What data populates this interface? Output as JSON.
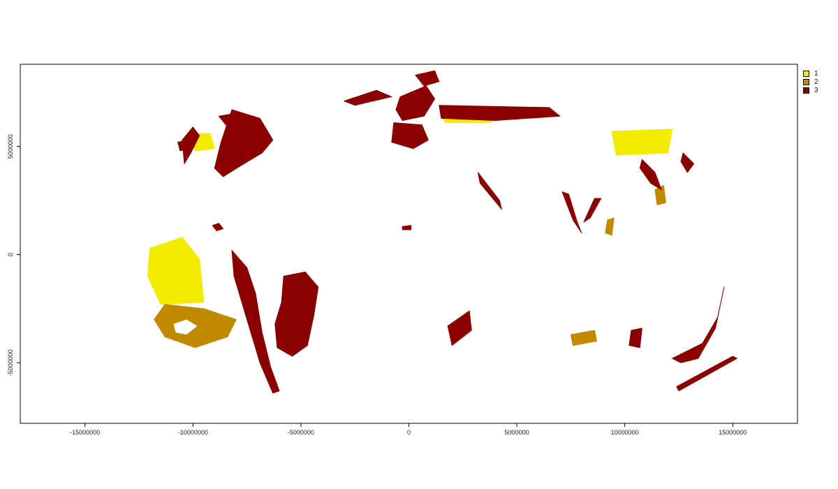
{
  "chart_data": {
    "type": "heatmap",
    "title": "",
    "xlabel": "",
    "ylabel": "",
    "xlim": [
      -18000000,
      18000000
    ],
    "ylim": [
      -7800000,
      8800000
    ],
    "x_ticks": [
      -15000000,
      -10000000,
      -5000000,
      0,
      5000000,
      10000000,
      15000000
    ],
    "x_tick_labels": [
      "-15000000",
      "-10000000",
      "-5000000",
      "0",
      "5000000",
      "10000000",
      "15000000"
    ],
    "y_ticks": [
      -5000000,
      0,
      5000000
    ],
    "y_tick_labels": [
      "-5000000",
      "0",
      "5000000"
    ],
    "legend_position": "right-top",
    "legend": [
      {
        "label": "1",
        "color": "#f2ec00"
      },
      {
        "label": "2",
        "color": "#c08a00"
      },
      {
        "label": "3",
        "color": "#8b0000"
      }
    ]
  },
  "regions": [
    {
      "name": "north-america-east",
      "cls": 3,
      "points": [
        [
          -8200000,
          6700000
        ],
        [
          -6900000,
          6300000
        ],
        [
          -6300000,
          5300000
        ],
        [
          -6800000,
          4700000
        ],
        [
          -7800000,
          4100000
        ],
        [
          -8600000,
          3600000
        ],
        [
          -9000000,
          4000000
        ],
        [
          -8700000,
          5200000
        ]
      ]
    },
    {
      "name": "north-america-canada-north",
      "cls": 3,
      "points": [
        [
          -8800000,
          6400000
        ],
        [
          -8200000,
          6500000
        ],
        [
          -7800000,
          6000000
        ],
        [
          -8400000,
          5900000
        ]
      ]
    },
    {
      "name": "north-america-west",
      "cls": 3,
      "points": [
        [
          -10500000,
          5300000
        ],
        [
          -10000000,
          5900000
        ],
        [
          -9700000,
          5500000
        ],
        [
          -10100000,
          4700000
        ],
        [
          -10400000,
          4200000
        ]
      ]
    },
    {
      "name": "alaska",
      "cls": 3,
      "points": [
        [
          -10700000,
          5200000
        ],
        [
          -10200000,
          5300000
        ],
        [
          -10100000,
          4900000
        ],
        [
          -10600000,
          4800000
        ]
      ]
    },
    {
      "name": "cuba-caribbean",
      "cls": 3,
      "points": [
        [
          -9100000,
          1350000
        ],
        [
          -8800000,
          1450000
        ],
        [
          -8600000,
          1200000
        ],
        [
          -8900000,
          1100000
        ]
      ]
    },
    {
      "name": "south-america-andes",
      "cls": 3,
      "points": [
        [
          -8200000,
          200000
        ],
        [
          -7500000,
          -600000
        ],
        [
          -7100000,
          -1800000
        ],
        [
          -6800000,
          -3600000
        ],
        [
          -6400000,
          -5200000
        ],
        [
          -6000000,
          -6300000
        ],
        [
          -6300000,
          -6400000
        ],
        [
          -6900000,
          -5000000
        ],
        [
          -7500000,
          -3000000
        ],
        [
          -8100000,
          -1000000
        ]
      ]
    },
    {
      "name": "south-america-brazil",
      "cls": 3,
      "points": [
        [
          -5800000,
          -1000000
        ],
        [
          -4800000,
          -800000
        ],
        [
          -4200000,
          -1500000
        ],
        [
          -4400000,
          -2800000
        ],
        [
          -4700000,
          -4200000
        ],
        [
          -5400000,
          -4700000
        ],
        [
          -6100000,
          -4300000
        ],
        [
          -6200000,
          -3200000
        ],
        [
          -5900000,
          -2200000
        ]
      ]
    },
    {
      "name": "europe-scandinavia",
      "cls": 3,
      "points": [
        [
          -400000,
          7300000
        ],
        [
          800000,
          7800000
        ],
        [
          1200000,
          7200000
        ],
        [
          700000,
          6400000
        ],
        [
          -300000,
          6200000
        ],
        [
          -600000,
          6700000
        ]
      ]
    },
    {
      "name": "europe-north-arctic",
      "cls": 3,
      "points": [
        [
          300000,
          8300000
        ],
        [
          1200000,
          8500000
        ],
        [
          1400000,
          8000000
        ],
        [
          700000,
          7800000
        ]
      ]
    },
    {
      "name": "europe-central",
      "cls": 3,
      "points": [
        [
          -700000,
          6100000
        ],
        [
          600000,
          6000000
        ],
        [
          900000,
          5300000
        ],
        [
          200000,
          4900000
        ],
        [
          -800000,
          5200000
        ]
      ]
    },
    {
      "name": "siberia-band",
      "cls": 3,
      "points": [
        [
          1400000,
          6900000
        ],
        [
          6500000,
          6800000
        ],
        [
          7000000,
          6400000
        ],
        [
          4000000,
          6200000
        ],
        [
          1500000,
          6300000
        ]
      ]
    },
    {
      "name": "arctic-coast",
      "cls": 3,
      "points": [
        [
          -3000000,
          7100000
        ],
        [
          -1500000,
          7600000
        ],
        [
          -800000,
          7300000
        ],
        [
          -2500000,
          6900000
        ]
      ]
    },
    {
      "name": "central-asia-ridge",
      "cls": 3,
      "points": [
        [
          3200000,
          3800000
        ],
        [
          4200000,
          2500000
        ],
        [
          4300000,
          2100000
        ],
        [
          3300000,
          3300000
        ]
      ]
    },
    {
      "name": "india-west-ghats",
      "cls": 3,
      "points": [
        [
          7100000,
          2900000
        ],
        [
          7600000,
          1600000
        ],
        [
          8000000,
          1000000
        ],
        [
          7800000,
          1500000
        ],
        [
          7400000,
          2800000
        ]
      ]
    },
    {
      "name": "india-east-coast",
      "cls": 3,
      "points": [
        [
          8100000,
          1500000
        ],
        [
          8600000,
          2600000
        ],
        [
          8900000,
          2600000
        ],
        [
          8400000,
          1700000
        ]
      ]
    },
    {
      "name": "east-china",
      "cls": 3,
      "points": [
        [
          10800000,
          4400000
        ],
        [
          11400000,
          3800000
        ],
        [
          11700000,
          3000000
        ],
        [
          11200000,
          3300000
        ],
        [
          10700000,
          4000000
        ]
      ]
    },
    {
      "name": "japan",
      "cls": 3,
      "points": [
        [
          12700000,
          4700000
        ],
        [
          13200000,
          4200000
        ],
        [
          12900000,
          3800000
        ],
        [
          12600000,
          4300000
        ]
      ]
    },
    {
      "name": "africa-south",
      "cls": 3,
      "points": [
        [
          1800000,
          -3300000
        ],
        [
          2800000,
          -2600000
        ],
        [
          2900000,
          -3500000
        ],
        [
          2000000,
          -4200000
        ]
      ]
    },
    {
      "name": "madagascar",
      "cls": 3,
      "points": [
        [
          10300000,
          -3500000
        ],
        [
          10800000,
          -3400000
        ],
        [
          10700000,
          -4300000
        ],
        [
          10200000,
          -4200000
        ]
      ]
    },
    {
      "name": "australia-south-east",
      "cls": 3,
      "points": [
        [
          12200000,
          -4800000
        ],
        [
          13600000,
          -4100000
        ],
        [
          14300000,
          -2900000
        ],
        [
          14600000,
          -1500000
        ],
        [
          14200000,
          -3400000
        ],
        [
          13400000,
          -4800000
        ],
        [
          12600000,
          -5000000
        ]
      ]
    },
    {
      "name": "new-zealand",
      "cls": 3,
      "points": [
        [
          12400000,
          -6100000
        ],
        [
          15000000,
          -4700000
        ],
        [
          15200000,
          -4800000
        ],
        [
          12500000,
          -6300000
        ]
      ]
    },
    {
      "name": "west-africa-blob",
      "cls": 3,
      "points": [
        [
          -300000,
          1300000
        ],
        [
          100000,
          1350000
        ],
        [
          100000,
          1150000
        ],
        [
          -300000,
          1150000
        ]
      ]
    },
    {
      "name": "pacific-ring-class2",
      "cls": 2,
      "points": [
        [
          -11300000,
          -2300000
        ],
        [
          -9500000,
          -2500000
        ],
        [
          -8000000,
          -3000000
        ],
        [
          -8400000,
          -3800000
        ],
        [
          -9900000,
          -4300000
        ],
        [
          -11300000,
          -3800000
        ],
        [
          -11800000,
          -3000000
        ]
      ]
    },
    {
      "name": "pacific-scatter-class1",
      "cls": 1,
      "points": [
        [
          -12000000,
          300000
        ],
        [
          -10500000,
          800000
        ],
        [
          -9700000,
          -200000
        ],
        [
          -9500000,
          -2200000
        ],
        [
          -11500000,
          -2300000
        ],
        [
          -12100000,
          -1000000
        ]
      ]
    },
    {
      "name": "indian-ocean-class2",
      "cls": 2,
      "points": [
        [
          7500000,
          -3700000
        ],
        [
          8600000,
          -3500000
        ],
        [
          8700000,
          -4000000
        ],
        [
          7600000,
          -4200000
        ]
      ]
    },
    {
      "name": "siberia-class1",
      "cls": 1,
      "points": [
        [
          1500000,
          6400000
        ],
        [
          4000000,
          6600000
        ],
        [
          3800000,
          6100000
        ],
        [
          1700000,
          6100000
        ]
      ]
    },
    {
      "name": "east-asia-class1",
      "cls": 1,
      "points": [
        [
          9400000,
          5700000
        ],
        [
          12200000,
          5800000
        ],
        [
          12000000,
          4700000
        ],
        [
          9600000,
          4600000
        ]
      ]
    },
    {
      "name": "north-america-class1",
      "cls": 1,
      "points": [
        [
          -10200000,
          5600000
        ],
        [
          -9200000,
          5600000
        ],
        [
          -9000000,
          4900000
        ],
        [
          -9900000,
          4800000
        ]
      ]
    },
    {
      "name": "india-class2",
      "cls": 2,
      "points": [
        [
          9200000,
          1600000
        ],
        [
          9500000,
          1700000
        ],
        [
          9400000,
          900000
        ],
        [
          9100000,
          1000000
        ]
      ]
    },
    {
      "name": "east-china-class2",
      "cls": 2,
      "points": [
        [
          11400000,
          3000000
        ],
        [
          11800000,
          3200000
        ],
        [
          11900000,
          2400000
        ],
        [
          11500000,
          2300000
        ]
      ]
    }
  ],
  "hole": {
    "name": "ring-center",
    "points": [
      [
        -10900000,
        -3200000
      ],
      [
        -10300000,
        -3000000
      ],
      [
        -9800000,
        -3300000
      ],
      [
        -10300000,
        -3700000
      ],
      [
        -10800000,
        -3600000
      ]
    ]
  }
}
